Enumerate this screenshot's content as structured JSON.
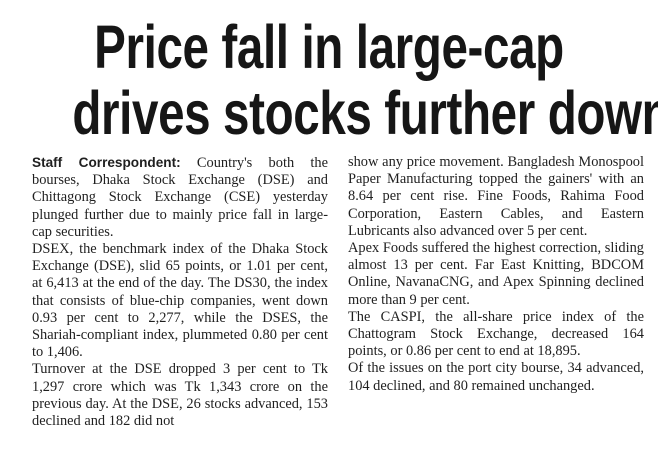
{
  "headline": {
    "line1": "Price fall in large-cap",
    "line2": "drives stocks further down"
  },
  "article": {
    "byline": "Staff Correspondent:",
    "left_column": {
      "p1": " Country's both the bourses, Dhaka Stock Exchange (DSE) and Chittagong Stock Exchange (CSE) yesterday plunged further due to mainly price fall in large-cap securities.",
      "p2": "DSEX, the benchmark index of the Dhaka Stock Exchange (DSE), slid 65 points, or 1.01 per cent, at 6,413 at the end of the day. The DS30, the index that consists of blue-chip companies, went down 0.93 per cent to 2,277, while the DSES, the Shariah-compliant index, plummeted 0.80 per cent to 1,406.",
      "p3": "Turnover at the DSE dropped 3 per cent to Tk 1,297 crore which was Tk 1,343 crore on the previous day. At the DSE, 26 stocks advanced, 153 declined and 182 did not"
    },
    "right_column": {
      "p1": "show any price movement. Bangladesh Monospool Paper Manufacturing topped the gainers' with an 8.64 per cent rise. Fine Foods, Rahima Food Corporation, Eastern Cables, and Eastern Lubricants also advanced over 5 per cent.",
      "p2": "Apex Foods suffered the highest correction, sliding almost 13 per cent. Far East Knitting, BDCOM Online, NavanaCNG, and Apex Spinning declined more than 9 per cent.",
      "p3": "The CASPI, the all-share price index of the Chattogram Stock Exchange, decreased 164 points, or 0.86 per cent to end at 18,895.",
      "p4": "Of the issues on the port city bourse, 34 advanced, 104 declined, and 80 remained unchanged."
    }
  }
}
